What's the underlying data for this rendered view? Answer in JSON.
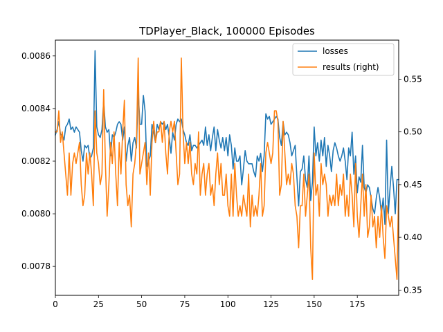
{
  "chart_data": {
    "type": "line",
    "title": "TDPlayer_Black, 100000 Episodes",
    "xlabel": "",
    "ylabel": "",
    "ylabel_right": "",
    "xlim": [
      0,
      199
    ],
    "ylim_left": [
      0.00769,
      0.00866
    ],
    "ylim_right": [
      0.345,
      0.587
    ],
    "x_ticks": [
      0,
      25,
      50,
      75,
      100,
      125,
      150,
      175
    ],
    "y_ticks_left": [
      0.0078,
      0.008,
      0.0082,
      0.0084,
      0.0086
    ],
    "y_ticks_right": [
      0.35,
      0.4,
      0.45,
      0.5,
      0.55
    ],
    "y_tick_labels_left": [
      "0.0078",
      "0.0080",
      "0.0082",
      "0.0084",
      "0.0086"
    ],
    "y_tick_labels_right": [
      "0.35",
      "0.40",
      "0.45",
      "0.50",
      "0.55"
    ],
    "grid": false,
    "legend_position": "top-right",
    "series": [
      {
        "name": "losses",
        "axis": "left",
        "color": "#1f77b4",
        "values": [
          0.0083,
          0.00832,
          0.00835,
          0.0083,
          0.0083,
          0.00828,
          0.00833,
          0.00834,
          0.00836,
          0.00832,
          0.00833,
          0.00831,
          0.00833,
          0.00832,
          0.00831,
          0.00824,
          0.0082,
          0.00826,
          0.00825,
          0.00826,
          0.00821,
          0.00822,
          0.00825,
          0.00862,
          0.00833,
          0.0083,
          0.00829,
          0.00832,
          0.00843,
          0.00833,
          0.00831,
          0.00832,
          0.00822,
          0.0083,
          0.00829,
          0.00831,
          0.00834,
          0.00835,
          0.00834,
          0.00828,
          0.00833,
          0.0082,
          0.00826,
          0.00829,
          0.0082,
          0.00827,
          0.00829,
          0.00825,
          0.00847,
          0.00834,
          0.00834,
          0.00845,
          0.00839,
          0.00818,
          0.0082,
          0.00822,
          0.00834,
          0.00831,
          0.00827,
          0.00834,
          0.00832,
          0.00835,
          0.00834,
          0.00835,
          0.00832,
          0.00834,
          0.00829,
          0.00823,
          0.00831,
          0.00828,
          0.00834,
          0.00836,
          0.00835,
          0.00836,
          0.00832,
          0.0083,
          0.00827,
          0.00826,
          0.0083,
          0.00824,
          0.00826,
          0.00826,
          0.00825,
          0.00826,
          0.00827,
          0.00828,
          0.00826,
          0.00833,
          0.00826,
          0.0083,
          0.00824,
          0.00829,
          0.00833,
          0.00824,
          0.00832,
          0.00828,
          0.00825,
          0.00829,
          0.00824,
          0.00829,
          0.00822,
          0.0083,
          0.00826,
          0.00817,
          0.00825,
          0.0082,
          0.0082,
          0.00822,
          0.00811,
          0.00817,
          0.00824,
          0.0082,
          0.00819,
          0.00819,
          0.00819,
          0.00816,
          0.00814,
          0.00822,
          0.0082,
          0.00823,
          0.00816,
          0.00822,
          0.00838,
          0.00836,
          0.00837,
          0.00834,
          0.00835,
          0.00836,
          0.00837,
          0.00836,
          0.00829,
          0.00826,
          0.00835,
          0.0083,
          0.00831,
          0.0083,
          0.00827,
          0.00822,
          0.00824,
          0.00826,
          0.00814,
          0.00803,
          0.00816,
          0.00817,
          0.00822,
          0.00813,
          0.0081,
          0.00822,
          0.00805,
          0.00812,
          0.00833,
          0.00822,
          0.00827,
          0.0082,
          0.00828,
          0.00822,
          0.00829,
          0.00818,
          0.00826,
          0.00822,
          0.00816,
          0.00824,
          0.00827,
          0.00825,
          0.00822,
          0.0082,
          0.00822,
          0.00825,
          0.0082,
          0.00813,
          0.00825,
          0.00822,
          0.00831,
          0.00815,
          0.00822,
          0.00808,
          0.00814,
          0.00812,
          0.00826,
          0.0081,
          0.00808,
          0.00811,
          0.0081,
          0.00806,
          0.00802,
          0.008,
          0.00806,
          0.0081,
          0.00806,
          0.008,
          0.00806,
          0.00796,
          0.00828,
          0.008,
          0.0081,
          0.00818,
          0.0081,
          0.008,
          0.00813,
          0.00813
        ]
      },
      {
        "name": "results (right)",
        "axis": "right",
        "color": "#ff7f0e",
        "values": [
          0.5,
          0.5,
          0.52,
          0.49,
          0.5,
          0.48,
          0.46,
          0.44,
          0.48,
          0.44,
          0.47,
          0.48,
          0.47,
          0.48,
          0.49,
          0.45,
          0.43,
          0.44,
          0.48,
          0.46,
          0.48,
          0.46,
          0.43,
          0.52,
          0.48,
          0.47,
          0.45,
          0.46,
          0.54,
          0.47,
          0.42,
          0.45,
          0.49,
          0.47,
          0.5,
          0.46,
          0.43,
          0.49,
          0.46,
          0.5,
          0.53,
          0.45,
          0.43,
          0.44,
          0.41,
          0.46,
          0.47,
          0.49,
          0.57,
          0.46,
          0.47,
          0.48,
          0.49,
          0.45,
          0.48,
          0.44,
          0.49,
          0.51,
          0.49,
          0.5,
          0.5,
          0.51,
          0.49,
          0.51,
          0.48,
          0.46,
          0.5,
          0.51,
          0.5,
          0.51,
          0.48,
          0.45,
          0.46,
          0.57,
          0.5,
          0.47,
          0.49,
          0.47,
          0.49,
          0.46,
          0.45,
          0.47,
          0.46,
          0.5,
          0.44,
          0.46,
          0.47,
          0.44,
          0.46,
          0.47,
          0.44,
          0.45,
          0.43,
          0.46,
          0.48,
          0.45,
          0.47,
          0.44,
          0.44,
          0.46,
          0.43,
          0.42,
          0.46,
          0.42,
          0.47,
          0.44,
          0.42,
          0.43,
          0.42,
          0.44,
          0.43,
          0.42,
          0.46,
          0.41,
          0.44,
          0.42,
          0.43,
          0.42,
          0.44,
          0.47,
          0.42,
          0.43,
          0.48,
          0.49,
          0.48,
          0.47,
          0.48,
          0.52,
          0.52,
          0.51,
          0.44,
          0.45,
          0.51,
          0.48,
          0.45,
          0.46,
          0.45,
          0.47,
          0.46,
          0.43,
          0.42,
          0.39,
          0.43,
          0.43,
          0.46,
          0.42,
          0.44,
          0.46,
          0.39,
          0.36,
          0.48,
          0.44,
          0.45,
          0.42,
          0.47,
          0.45,
          0.46,
          0.45,
          0.42,
          0.44,
          0.43,
          0.44,
          0.43,
          0.46,
          0.43,
          0.45,
          0.44,
          0.46,
          0.42,
          0.44,
          0.42,
          0.46,
          0.44,
          0.41,
          0.47,
          0.42,
          0.4,
          0.43,
          0.46,
          0.42,
          0.45,
          0.4,
          0.41,
          0.44,
          0.41,
          0.42,
          0.39,
          0.42,
          0.4,
          0.43,
          0.4,
          0.38,
          0.43,
          0.42,
          0.41,
          0.42,
          0.4,
          0.38,
          0.36,
          0.45
        ]
      }
    ]
  }
}
